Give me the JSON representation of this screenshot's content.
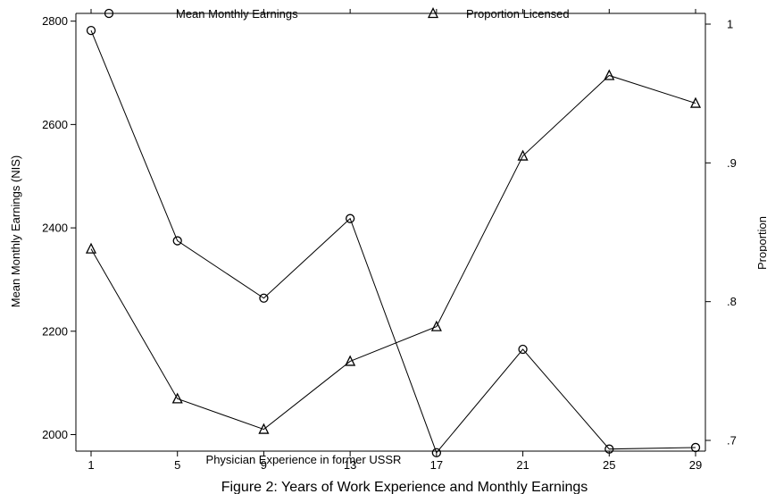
{
  "chart_data": {
    "type": "line",
    "title": "",
    "caption": "Figure 2: Years of Work Experience and Monthly Earnings",
    "xlabel": "Physician Experience in former USSR",
    "ylabel_left": "Mean Monthly Earnings (NIS)",
    "ylabel_right": "Proportion",
    "x": [
      1,
      5,
      9,
      13,
      17,
      21,
      25,
      29
    ],
    "x_ticks": [
      "1",
      "5",
      "9",
      "13",
      "17",
      "21",
      "25",
      "29"
    ],
    "ylim_left": [
      1968,
      2815
    ],
    "ylim_right": [
      0.7,
      1.0
    ],
    "y_ticks_left": [
      {
        "value": 2000,
        "label": "2000"
      },
      {
        "value": 2200,
        "label": "2200"
      },
      {
        "value": 2400,
        "label": "2400"
      },
      {
        "value": 2600,
        "label": "2600"
      },
      {
        "value": 2800,
        "label": "2800"
      }
    ],
    "y_ticks_right": [
      {
        "value": 0.7,
        "label": ".7"
      },
      {
        "value": 0.8,
        "label": ".8"
      },
      {
        "value": 0.9,
        "label": ".9"
      },
      {
        "value": 1.0,
        "label": "1"
      }
    ],
    "legend_position": "top",
    "grid": false,
    "series": [
      {
        "name": "Mean Monthly Earnings",
        "marker": "circle",
        "axis": "left",
        "values": [
          2782,
          2375,
          2264,
          2418,
          1965,
          2165,
          1972,
          1975
        ]
      },
      {
        "name": "Proportion Licensed",
        "marker": "triangle",
        "axis": "right",
        "values": [
          0.838,
          0.73,
          0.708,
          0.757,
          0.782,
          0.905,
          0.963,
          0.943
        ]
      }
    ]
  }
}
